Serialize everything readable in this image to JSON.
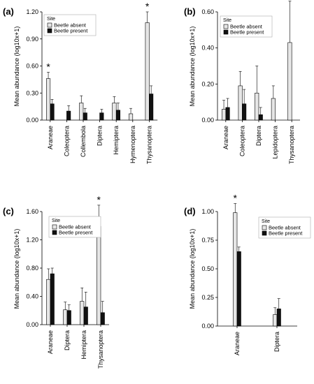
{
  "colors": {
    "absent": "#e6e6e6",
    "present": "#111111",
    "axis": "#000000"
  },
  "legend": {
    "title": "Site",
    "absent_label": "Beetle absent",
    "present_label": "Beetle present"
  },
  "chart_data": [
    {
      "panel": "(a)",
      "type": "bar",
      "ylabel": "Mean abundance (log10x+1)",
      "ylim": [
        0,
        1.2
      ],
      "yticks": [
        "0.00",
        "0.30",
        "0.60",
        "0.90",
        "1.20"
      ],
      "categories": [
        "Araneae",
        "Coleoptera",
        "Collembola",
        "Diptera",
        "Hemiptera",
        "Hymenoptera",
        "Thysanoptera"
      ],
      "series": [
        {
          "name": "Beetle absent",
          "values": [
            0.46,
            0,
            0.19,
            0,
            0.19,
            0.07,
            1.08
          ],
          "errors": [
            0.07,
            0,
            0.08,
            0,
            0.07,
            0.06,
            0.12
          ]
        },
        {
          "name": "Beetle present",
          "values": [
            0.18,
            0.1,
            0.08,
            0.08,
            0.11,
            0,
            0.29
          ],
          "errors": [
            0.05,
            0.06,
            0.05,
            0.04,
            0.08,
            0,
            0.09
          ]
        }
      ],
      "significant": [
        "Araneae",
        "Thysanoptera"
      ],
      "marker": "*",
      "legend_position": "top-left"
    },
    {
      "panel": "(b)",
      "type": "bar",
      "ylabel": "Mean abundance (log10x+1)",
      "ylim": [
        0,
        0.6
      ],
      "yticks": [
        "0.00",
        "0.20",
        "0.40",
        "0.60"
      ],
      "categories": [
        "Araneae",
        "Coleoptera",
        "Diptera",
        "Lepidoptera",
        "Thysanoptera"
      ],
      "series": [
        {
          "name": "Beetle absent",
          "values": [
            0.06,
            0.19,
            0.15,
            0.12,
            0.43
          ],
          "errors": [
            0.05,
            0.08,
            0.15,
            0.07,
            0.23
          ]
        },
        {
          "name": "Beetle present",
          "values": [
            0.07,
            0.09,
            0.03,
            0,
            0
          ],
          "errors": [
            0.05,
            0.08,
            0.04,
            0,
            0
          ]
        }
      ],
      "significant": [],
      "marker": "*",
      "legend_position": "top-left"
    },
    {
      "panel": "(c)",
      "type": "bar",
      "ylabel": "Mean abundance (log10x+1)",
      "ylim": [
        0,
        1.6
      ],
      "yticks": [
        "0.00",
        "0.40",
        "0.80",
        "1.20",
        "1.60"
      ],
      "categories": [
        "Araneae",
        "Diptera",
        "Hemiptera",
        "Thysanoptera"
      ],
      "series": [
        {
          "name": "Beetle absent",
          "values": [
            0.64,
            0.21,
            0.33,
            1.39
          ],
          "errors": [
            0.15,
            0.11,
            0.19,
            0.3
          ]
        },
        {
          "name": "Beetle present",
          "values": [
            0.72,
            0.2,
            0.25,
            0.17
          ],
          "errors": [
            0.08,
            0.08,
            0.21,
            0.16
          ]
        }
      ],
      "significant": [
        "Thysanoptera"
      ],
      "marker": "*",
      "legend_position": "top-left"
    },
    {
      "panel": "(d)",
      "type": "bar",
      "ylabel": "Mean abundance (log10x+1)",
      "ylim": [
        0,
        1.0
      ],
      "yticks": [
        "0.00",
        "0.25",
        "0.50",
        "0.75",
        "1.00"
      ],
      "categories": [
        "Araneae",
        "Diptera"
      ],
      "series": [
        {
          "name": "Beetle absent",
          "values": [
            0.99,
            0.1
          ],
          "errors": [
            0.08,
            0.06
          ]
        },
        {
          "name": "Beetle present",
          "values": [
            0.65,
            0.15
          ],
          "errors": [
            0.04,
            0.09
          ]
        }
      ],
      "significant": [
        "Araneae"
      ],
      "marker": "*",
      "legend_position": "top-right"
    }
  ]
}
